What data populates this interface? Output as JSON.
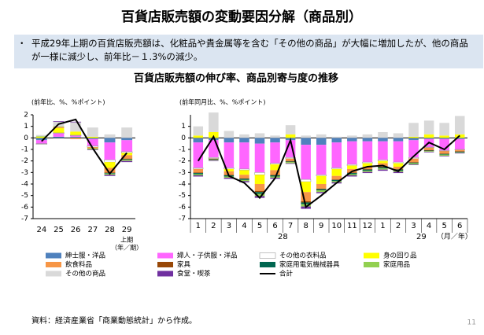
{
  "title": "百貨店販売額の変動要因分解（商品別）",
  "summary": "平成29年上期の百貨店販売額は、化粧品や貴金属等を含む「その他の商品」が大幅に増加したが、他の商品が一様に減少し、前年比－１.3%の減少。",
  "subtitle": "百貨店販売額の伸び率、商品別寄与度の推移",
  "source": "資料：経済産業省「商業動態統計」から作成。",
  "page_number": "11",
  "chart_data": [
    {
      "type": "bar",
      "stacked": true,
      "y_label": "(前年比、%、%ポイント)",
      "categories": [
        "24",
        "25",
        "26",
        "27",
        "28",
        "29"
      ],
      "period_label": "上期",
      "x_unit": "（年／期）",
      "ylim": [
        -7,
        2
      ],
      "yticks": [
        2,
        1,
        0,
        -1,
        -2,
        -3,
        -4,
        -5,
        -6,
        -7
      ],
      "series": [
        {
          "name": "紳士服・洋品",
          "color": "#4f81bd",
          "values": [
            -0.2,
            0.1,
            0.1,
            -0.1,
            -0.4,
            -0.2
          ]
        },
        {
          "name": "婦人・子供服・洋品",
          "color": "#ff66ff",
          "values": [
            -0.3,
            0.3,
            0.1,
            -0.6,
            -1.5,
            -1.0
          ]
        },
        {
          "name": "その他の衣料品",
          "color": "#ffffff",
          "values": [
            -0.05,
            0.05,
            0.05,
            -0.1,
            -0.2,
            -0.1
          ]
        },
        {
          "name": "身の回り品",
          "color": "#ffff00",
          "values": [
            0.1,
            0.4,
            0.3,
            0.1,
            -0.5,
            -0.2
          ]
        },
        {
          "name": "飲食料品",
          "color": "#f79646",
          "values": [
            0,
            0.1,
            -0.1,
            -0.1,
            -0.4,
            -0.3
          ]
        },
        {
          "name": "家具",
          "color": "#984807",
          "values": [
            0,
            0,
            0,
            0,
            -0.05,
            -0.05
          ]
        },
        {
          "name": "家庭用電気機械器具",
          "color": "#006650",
          "values": [
            0,
            0,
            0,
            0,
            -0.05,
            -0.05
          ]
        },
        {
          "name": "家庭用品",
          "color": "#92d050",
          "values": [
            0.05,
            0.05,
            0,
            -0.1,
            -0.1,
            -0.1
          ]
        },
        {
          "name": "その他の商品",
          "color": "#d9d9d9",
          "values": [
            0.1,
            0.4,
            0.8,
            0.8,
            0.3,
            0.9
          ]
        },
        {
          "name": "食堂・喫茶",
          "color": "#7030a0",
          "values": [
            0,
            0.05,
            0.05,
            -0.05,
            -0.1,
            -0.1
          ]
        },
        {
          "name": "合計",
          "type": "line",
          "color": "#000000",
          "values": [
            -0.3,
            1.2,
            1.6,
            -0.9,
            -3.1,
            -1.3
          ]
        }
      ]
    },
    {
      "type": "bar",
      "stacked": true,
      "y_label": "(前年同月比、%、%ポイント)",
      "categories": [
        "1",
        "2",
        "3",
        "4",
        "5",
        "6",
        "7",
        "8",
        "9",
        "10",
        "11",
        "12",
        "1",
        "2",
        "3",
        "4",
        "5",
        "6"
      ],
      "year_labels": [
        "28",
        "29"
      ],
      "x_unit": "（月／年）",
      "ylim": [
        -7,
        2
      ],
      "yticks": [
        1,
        0,
        -1,
        -2,
        -3,
        -4,
        -5,
        -6,
        -7
      ],
      "series": [
        {
          "name": "紳士服・洋品",
          "color": "#4f81bd",
          "values": [
            -0.4,
            -0.2,
            -0.4,
            -0.4,
            -0.5,
            -0.4,
            -0.2,
            -0.6,
            -0.6,
            -0.4,
            -0.3,
            -0.3,
            -0.3,
            -0.3,
            -0.2,
            -0.1,
            -0.1,
            -0.1
          ]
        },
        {
          "name": "婦人・子供服・洋品",
          "color": "#ff66ff",
          "values": [
            -2.2,
            -1.5,
            -2.2,
            -2.3,
            -2.5,
            -1.8,
            -1.5,
            -3.0,
            -2.6,
            -2.2,
            -2.0,
            -1.8,
            -1.6,
            -1.8,
            -1.5,
            -0.7,
            -1.0,
            -0.9
          ]
        },
        {
          "name": "その他の衣料品",
          "color": "#ffffff",
          "values": [
            -0.1,
            -0.1,
            -0.1,
            -0.1,
            -0.2,
            -0.1,
            -0.1,
            -0.2,
            -0.1,
            -0.1,
            -0.1,
            -0.1,
            -0.1,
            -0.1,
            -0.1,
            -0.05,
            -0.05,
            -0.05
          ]
        },
        {
          "name": "身の回り品",
          "color": "#ffff00",
          "values": [
            0.2,
            0.5,
            -0.2,
            -0.4,
            -0.8,
            -0.5,
            0.3,
            -0.9,
            -0.7,
            -0.6,
            -0.3,
            -0.3,
            -0.2,
            -0.3,
            0.1,
            0.3,
            0.2,
            0.3
          ]
        },
        {
          "name": "飲食料品",
          "color": "#f79646",
          "values": [
            -0.3,
            0,
            -0.3,
            -0.3,
            -0.6,
            -0.4,
            -0.2,
            -0.8,
            -0.4,
            -0.3,
            -0.3,
            -0.2,
            -0.3,
            -0.2,
            -0.3,
            -0.2,
            -0.2,
            -0.1
          ]
        },
        {
          "name": "家具",
          "color": "#984807",
          "values": [
            -0.05,
            -0.05,
            -0.05,
            -0.05,
            -0.1,
            -0.05,
            -0.05,
            -0.1,
            -0.05,
            -0.05,
            -0.05,
            -0.05,
            -0.05,
            -0.05,
            -0.05,
            -0.05,
            -0.05,
            -0.05
          ]
        },
        {
          "name": "家庭用電気機械器具",
          "color": "#006650",
          "values": [
            -0.1,
            -0.05,
            -0.1,
            -0.1,
            -0.15,
            -0.1,
            -0.05,
            -0.15,
            -0.1,
            -0.1,
            -0.1,
            -0.1,
            -0.1,
            -0.1,
            -0.05,
            -0.05,
            -0.05,
            -0.05
          ]
        },
        {
          "name": "家庭用品",
          "color": "#92d050",
          "values": [
            -0.1,
            -0.05,
            -0.1,
            -0.1,
            -0.2,
            -0.1,
            -0.1,
            -0.2,
            -0.15,
            -0.1,
            -0.1,
            -0.1,
            -0.1,
            -0.1,
            -0.1,
            -0.05,
            -0.1,
            -0.05
          ]
        },
        {
          "name": "その他の商品",
          "color": "#d9d9d9",
          "values": [
            0.8,
            1.7,
            0.6,
            0.3,
            0.4,
            0.2,
            0.8,
            0.2,
            0.3,
            0.1,
            0.2,
            0.3,
            0.5,
            0.4,
            1.2,
            1.2,
            1.1,
            1.6
          ]
        },
        {
          "name": "食堂・喫茶",
          "color": "#7030a0",
          "values": [
            -0.1,
            -0.05,
            -0.1,
            -0.1,
            -0.15,
            -0.1,
            -0.05,
            -0.2,
            -0.1,
            -0.1,
            -0.1,
            -0.1,
            -0.1,
            -0.1,
            -0.05,
            -0.05,
            -0.05,
            -0.05
          ]
        },
        {
          "name": "合計",
          "type": "line",
          "color": "#000000",
          "values": [
            -2.0,
            0.1,
            -3.3,
            -3.9,
            -5.2,
            -3.5,
            -0.2,
            -6.0,
            -5.0,
            -3.9,
            -2.9,
            -2.5,
            -2.4,
            -2.9,
            -1.6,
            -0.4,
            -1.0,
            0.2
          ]
        }
      ]
    }
  ]
}
